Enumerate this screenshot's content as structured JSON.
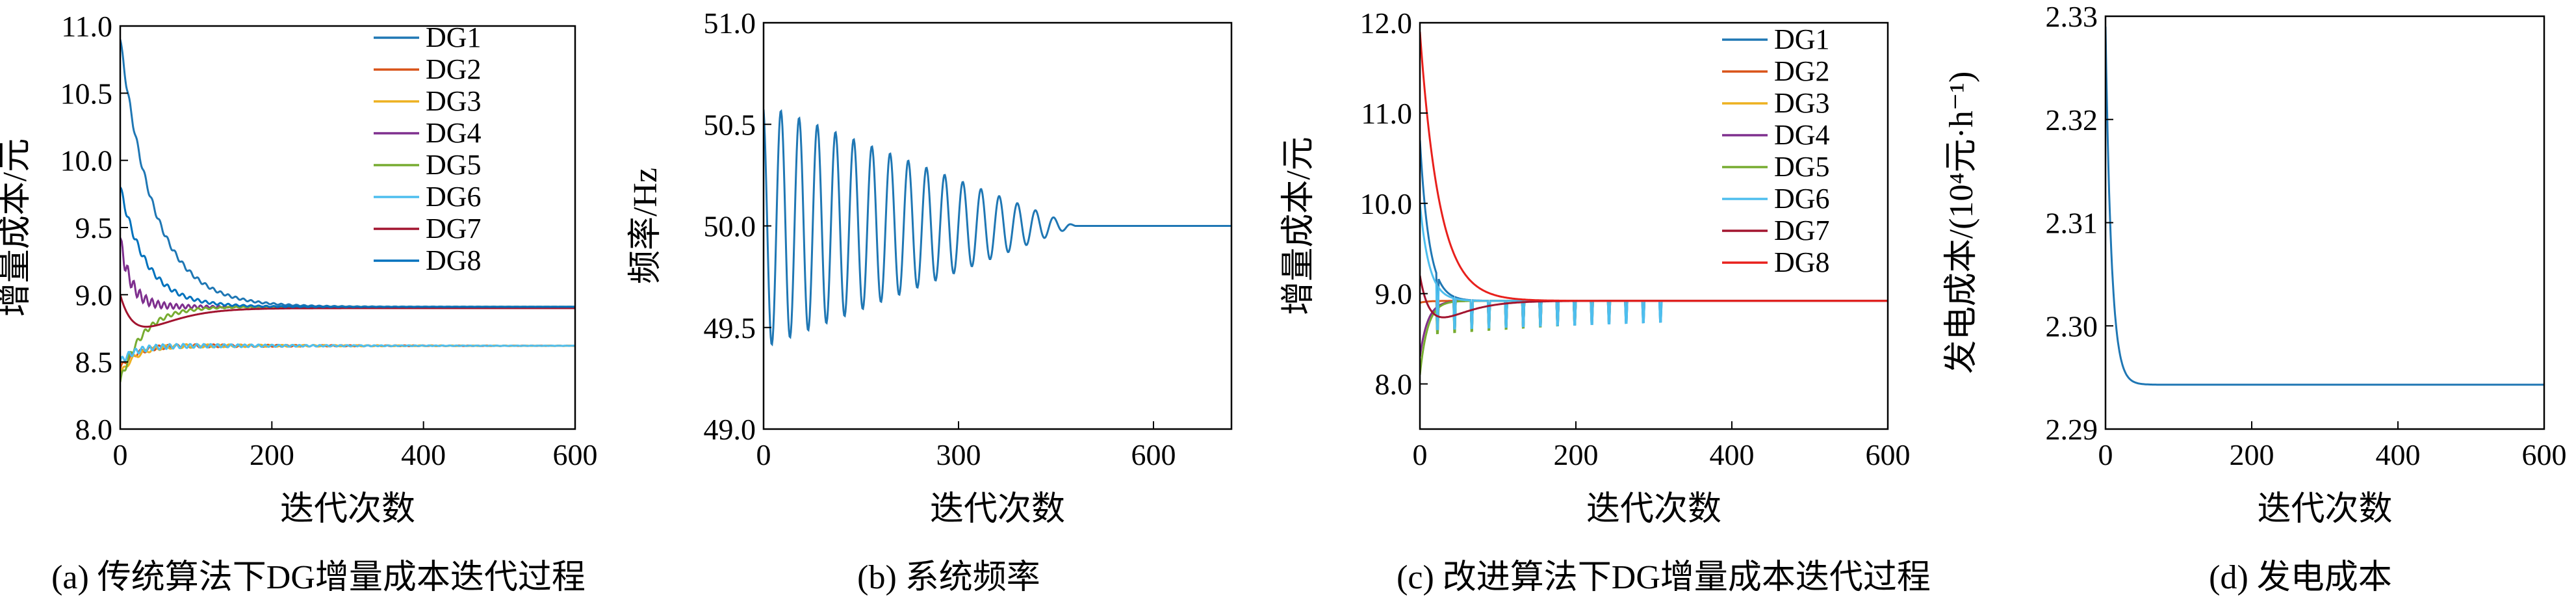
{
  "figure": {
    "captions": [
      "(a) 传统算法下DG增量成本迭代过程",
      "(b) 系统频率",
      "(c) 改进算法下DG增量成本迭代过程",
      "(d) 发电成本"
    ]
  },
  "chart_data": [
    {
      "type": "line",
      "title": "",
      "caption": "(a) 传统算法下DG增量成本迭代过程",
      "xlabel": "迭代次数",
      "ylabel": "增量成本/元",
      "xlim": [
        0,
        600
      ],
      "ylim": [
        8.0,
        11.0
      ],
      "xticks": [
        0,
        200,
        400,
        600
      ],
      "yticks": [
        8.0,
        8.5,
        9.0,
        9.5,
        10.0,
        10.5,
        11.0
      ],
      "legend": "top-right",
      "grid": false,
      "series": [
        {
          "name": "DG1",
          "color": "#1f77b4",
          "start": 10.9,
          "final": 8.91,
          "tau": 45,
          "osc": 0.03,
          "osc_period": 10,
          "osc_tau": 120
        },
        {
          "name": "DG2",
          "color": "#d95319",
          "start": 8.45,
          "final": 8.62,
          "tau": 20,
          "osc": 0.02,
          "osc_period": 12,
          "osc_tau": 200
        },
        {
          "name": "DG3",
          "color": "#edb120",
          "start": 8.4,
          "final": 8.62,
          "tau": 20,
          "osc": 0.02,
          "osc_period": 14,
          "osc_tau": 200
        },
        {
          "name": "DG4",
          "color": "#7e2f8e",
          "start": 9.4,
          "final": 8.91,
          "tau": 15,
          "osc": 0.06,
          "osc_period": 8,
          "osc_tau": 60
        },
        {
          "name": "DG5",
          "color": "#77ac30",
          "start": 8.35,
          "final": 8.91,
          "tau": 30,
          "osc": 0.03,
          "osc_period": 10,
          "osc_tau": 80
        },
        {
          "name": "DG6",
          "color": "#4dbeee",
          "start": 8.5,
          "final": 8.62,
          "tau": 20,
          "osc": 0.025,
          "osc_period": 9,
          "osc_tau": 180
        },
        {
          "name": "DG7",
          "color": "#a2142f",
          "start": 9.0,
          "final": 8.9,
          "tau": 15,
          "osc": 0.0,
          "osc_period": 10,
          "osc_tau": 50,
          "dip": -0.15,
          "dip_tau": 30
        },
        {
          "name": "DG8",
          "color": "#0072bd",
          "start": 9.8,
          "final": 8.91,
          "tau": 35,
          "osc": 0.03,
          "osc_period": 10,
          "osc_tau": 100
        }
      ]
    },
    {
      "type": "line",
      "title": "",
      "caption": "(b) 系统频率",
      "xlabel": "迭代次数",
      "ylabel": "频率/Hz",
      "xlim": [
        0,
        720
      ],
      "ylim": [
        49.0,
        51.0
      ],
      "xticks": [
        0,
        300,
        600
      ],
      "yticks": [
        49.0,
        49.5,
        50.0,
        50.5,
        51.0
      ],
      "legend": "none",
      "grid": false,
      "series": [
        {
          "name": "",
          "color": "#1f77b4",
          "center": 50.0,
          "amplitude": 0.6,
          "period": 28,
          "decay_until": 480,
          "settle": 50.0
        }
      ]
    },
    {
      "type": "line",
      "title": "",
      "caption": "(c) 改进算法下DG增量成本迭代过程",
      "xlabel": "迭代次数",
      "ylabel": "增量成本/元",
      "xlim": [
        0,
        600
      ],
      "ylim": [
        7.5,
        12.0
      ],
      "xticks": [
        0,
        200,
        400,
        600
      ],
      "yticks": [
        8.0,
        9.0,
        10.0,
        11.0,
        12.0
      ],
      "ytick_labels": [
        "8.0",
        "9.0",
        "10.0",
        "11.0",
        "12.0"
      ],
      "legend": "top-right",
      "grid": false,
      "series": [
        {
          "name": "DG1",
          "color": "#1f77b4",
          "start": 10.7,
          "final": 8.92,
          "tau": 12,
          "spike": true,
          "spike_lo": 8.6,
          "spike_end": 330
        },
        {
          "name": "DG2",
          "color": "#d95319",
          "start": 8.9,
          "final": 8.92,
          "tau": 10,
          "spike": true,
          "spike_lo": 8.65,
          "spike_end": 300
        },
        {
          "name": "DG3",
          "color": "#edb120",
          "start": 8.3,
          "final": 8.92,
          "tau": 10,
          "spike": true,
          "spike_lo": 8.6,
          "spike_end": 250
        },
        {
          "name": "DG4",
          "color": "#7e2f8e",
          "start": 8.3,
          "final": 8.92,
          "tau": 10,
          "spike": true,
          "spike_lo": 8.6,
          "spike_end": 220
        },
        {
          "name": "DG5",
          "color": "#77ac30",
          "start": 8.1,
          "final": 8.92,
          "tau": 10,
          "spike": true,
          "spike_lo": 8.55,
          "spike_end": 200
        },
        {
          "name": "DG6",
          "color": "#4dbeee",
          "start": 10.0,
          "final": 8.92,
          "tau": 12,
          "spike": true,
          "spike_lo": 8.6,
          "spike_end": 330
        },
        {
          "name": "DG7",
          "color": "#a2142f",
          "start": 9.2,
          "final": 8.92,
          "tau": 10,
          "spike": false,
          "dip": -0.2,
          "dip_tau": 25
        },
        {
          "name": "DG8",
          "color": "#e8201c",
          "start": 11.9,
          "final": 8.92,
          "tau": 25,
          "spike": false
        }
      ]
    },
    {
      "type": "line",
      "title": "",
      "caption": "(d) 发电成本",
      "xlabel": "迭代次数",
      "ylabel": "发电成本/(10⁴元·h⁻¹)",
      "xlim": [
        0,
        600
      ],
      "ylim": [
        2.29,
        2.33
      ],
      "xticks": [
        0,
        200,
        400,
        600
      ],
      "yticks": [
        2.29,
        2.3,
        2.31,
        2.32,
        2.33
      ],
      "ytick_labels": [
        "2.29",
        "2.30",
        "2.31",
        "2.32",
        "2.33"
      ],
      "legend": "none",
      "grid": false,
      "series": [
        {
          "name": "",
          "color": "#1f77b4",
          "start": 2.329,
          "final": 2.2943,
          "tau": 8
        }
      ]
    }
  ]
}
